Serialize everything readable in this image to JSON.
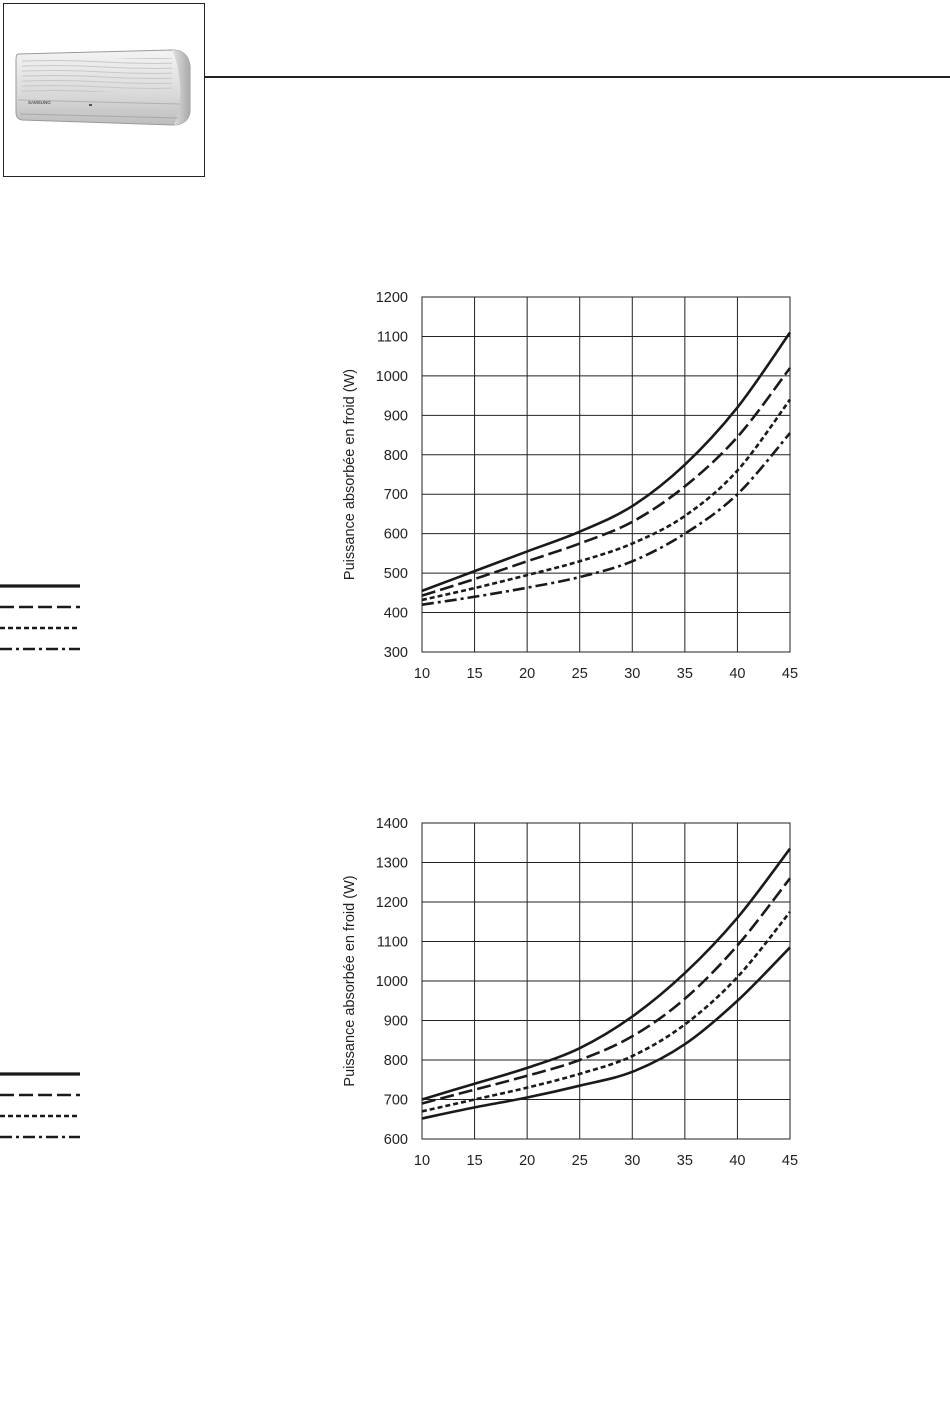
{
  "product_image": {
    "icon": "wall-mounted-air-conditioner-icon",
    "brand_label": "SAMSUNG"
  },
  "chart_data": [
    {
      "type": "line",
      "title": "",
      "xlabel": "",
      "ylabel": "Puissance absorbée en froid (W)",
      "x": [
        10,
        15,
        20,
        25,
        30,
        35,
        40,
        45
      ],
      "xlim": [
        10,
        45
      ],
      "ylim": [
        300,
        1200
      ],
      "x_ticks": [
        "10",
        "15",
        "20",
        "25",
        "30",
        "35",
        "40",
        "45"
      ],
      "y_ticks": [
        "300",
        "400",
        "500",
        "600",
        "700",
        "800",
        "900",
        "1000",
        "1100",
        "1200"
      ],
      "grid": true,
      "legend": "left",
      "series": [
        {
          "style": "solid",
          "values": [
            455,
            505,
            555,
            605,
            670,
            775,
            920,
            1110
          ]
        },
        {
          "style": "dashed",
          "values": [
            443,
            485,
            530,
            575,
            630,
            720,
            845,
            1020
          ]
        },
        {
          "style": "dotted",
          "values": [
            432,
            462,
            495,
            530,
            575,
            645,
            760,
            940
          ]
        },
        {
          "style": "dashdot",
          "values": [
            420,
            440,
            463,
            490,
            530,
            600,
            700,
            855
          ]
        }
      ]
    },
    {
      "type": "line",
      "title": "",
      "xlabel": "",
      "ylabel": "Puissance absorbée en froid (W)",
      "x": [
        10,
        15,
        20,
        25,
        30,
        35,
        40,
        45
      ],
      "xlim": [
        10,
        45
      ],
      "ylim": [
        600,
        1400
      ],
      "x_ticks": [
        "10",
        "15",
        "20",
        "25",
        "30",
        "35",
        "40",
        "45"
      ],
      "y_ticks": [
        "600",
        "700",
        "800",
        "900",
        "1000",
        "1100",
        "1200",
        "1300",
        "1400"
      ],
      "grid": true,
      "legend": "left",
      "series": [
        {
          "style": "solid",
          "values": [
            700,
            740,
            780,
            830,
            910,
            1020,
            1160,
            1335
          ]
        },
        {
          "style": "dashed",
          "values": [
            690,
            725,
            760,
            800,
            860,
            955,
            1090,
            1260
          ]
        },
        {
          "style": "dotted",
          "values": [
            670,
            700,
            730,
            765,
            810,
            890,
            1010,
            1175
          ]
        },
        {
          "style": "solid",
          "values": [
            652,
            680,
            705,
            735,
            770,
            840,
            950,
            1085
          ]
        }
      ]
    }
  ]
}
